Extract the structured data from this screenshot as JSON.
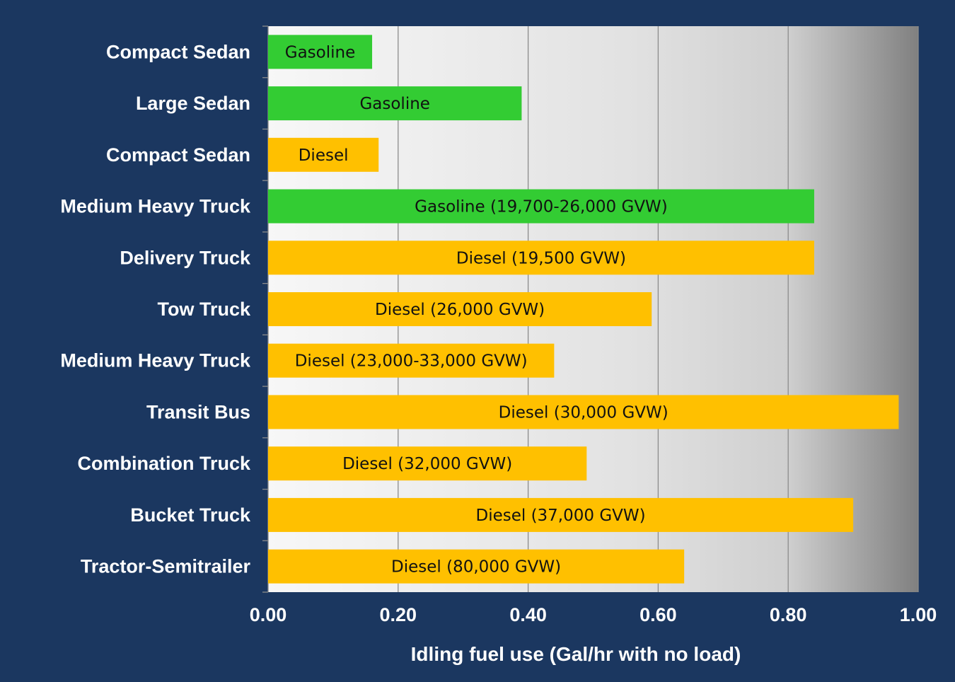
{
  "chart_data": {
    "type": "bar",
    "orientation": "horizontal",
    "categories": [
      "Compact Sedan",
      "Large Sedan",
      "Compact Sedan",
      "Medium Heavy Truck",
      "Delivery Truck",
      "Tow Truck",
      "Medium Heavy Truck",
      "Transit Bus",
      "Combination Truck",
      "Bucket Truck",
      "Tractor-Semitrailer"
    ],
    "values": [
      0.16,
      0.39,
      0.17,
      0.84,
      0.84,
      0.59,
      0.44,
      0.97,
      0.49,
      0.9,
      0.64
    ],
    "bar_labels": [
      "Gasoline",
      "Gasoline",
      "Diesel",
      "Gasoline (19,700-26,000 GVW)",
      "Diesel (19,500 GVW)",
      "Diesel (26,000 GVW)",
      "Diesel (23,000-33,000 GVW)",
      "Diesel (30,000 GVW)",
      "Diesel (32,000 GVW)",
      "Diesel (37,000 GVW)",
      "Diesel (80,000 GVW)"
    ],
    "fuel": [
      "Gasoline",
      "Gasoline",
      "Diesel",
      "Gasoline",
      "Diesel",
      "Diesel",
      "Diesel",
      "Diesel",
      "Diesel",
      "Diesel",
      "Diesel"
    ],
    "colors": {
      "Gasoline": "#33cc33",
      "Diesel": "#ffc000"
    },
    "xlabel": "Idling fuel use (Gal/hr with no load)",
    "ylabel": "",
    "title": "",
    "xlim": [
      0,
      1
    ],
    "xticks": [
      "0.00",
      "0.20",
      "0.40",
      "0.60",
      "0.80",
      "1.00"
    ],
    "grid": "vertical",
    "legend": "none",
    "background_color": "#1b3760"
  }
}
